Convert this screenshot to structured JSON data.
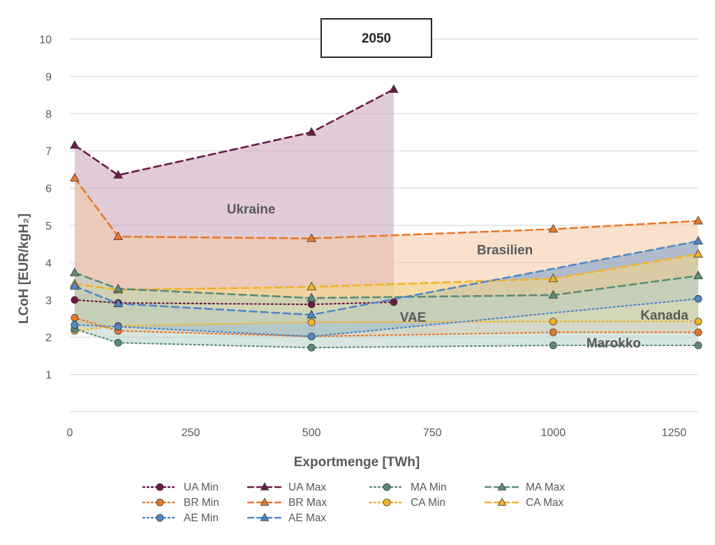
{
  "chart_data": {
    "type": "area",
    "title": "2050",
    "xlabel": "Exportmenge [TWh]",
    "ylabel": "LCoH [EUR/kgH₂]",
    "xlim": [
      0,
      1300
    ],
    "ylim": [
      0,
      10
    ],
    "xticks": [
      0,
      250,
      500,
      750,
      1000,
      1250
    ],
    "yticks": [
      1,
      2,
      3,
      4,
      5,
      6,
      7,
      8,
      9,
      10
    ],
    "grid": "horizontal",
    "legend_position": "bottom",
    "regions": [
      {
        "id": "UA",
        "label": "Ukraine",
        "label_x": 375,
        "label_y": 5.45,
        "color": "#6B1A46",
        "fill": "#C9A0B8"
      },
      {
        "id": "BR",
        "label": "Brasilien",
        "label_x": 900,
        "label_y": 4.35,
        "color": "#E8782A",
        "fill": "#F6C9A4"
      },
      {
        "id": "AE",
        "label": "VAE",
        "label_x": 710,
        "label_y": 2.55,
        "color": "#4F87C7",
        "fill": "#7FA3CC"
      },
      {
        "id": "CA",
        "label": "Kanada",
        "label_x": 1230,
        "label_y": 2.6,
        "color": "#F2B22A",
        "fill": "#F5D78A"
      },
      {
        "id": "MA",
        "label": "Marokko",
        "label_x": 1125,
        "label_y": 1.85,
        "color": "#5A8C78",
        "fill": "#B7D2C6"
      }
    ],
    "series": [
      {
        "name": "UA Min",
        "region": "UA",
        "kind": "min",
        "x": [
          10,
          100,
          500,
          670
        ],
        "y": [
          3.0,
          2.92,
          2.88,
          2.94
        ]
      },
      {
        "name": "UA Max",
        "region": "UA",
        "kind": "max",
        "x": [
          10,
          100,
          500,
          670
        ],
        "y": [
          7.15,
          6.35,
          7.5,
          8.65
        ]
      },
      {
        "name": "MA Min",
        "region": "MA",
        "kind": "min",
        "x": [
          10,
          100,
          500,
          1000,
          1300
        ],
        "y": [
          2.22,
          1.85,
          1.72,
          1.78,
          1.78
        ]
      },
      {
        "name": "MA Max",
        "region": "MA",
        "kind": "max",
        "x": [
          10,
          100,
          500,
          1000,
          1300
        ],
        "y": [
          3.73,
          3.3,
          3.05,
          3.13,
          3.65
        ]
      },
      {
        "name": "BR Min",
        "region": "BR",
        "kind": "min",
        "x": [
          10,
          100,
          500,
          1000,
          1300
        ],
        "y": [
          2.52,
          2.17,
          2.02,
          2.13,
          2.13
        ]
      },
      {
        "name": "BR Max",
        "region": "BR",
        "kind": "max",
        "x": [
          10,
          100,
          500,
          1000,
          1300
        ],
        "y": [
          6.27,
          4.7,
          4.65,
          4.9,
          5.12
        ]
      },
      {
        "name": "CA Min",
        "region": "CA",
        "kind": "min",
        "x": [
          10,
          100,
          500,
          1000,
          1300
        ],
        "y": [
          2.17,
          2.3,
          2.4,
          2.42,
          2.42
        ]
      },
      {
        "name": "CA Max",
        "region": "CA",
        "kind": "max",
        "x": [
          10,
          100,
          500,
          1000,
          1300
        ],
        "y": [
          3.43,
          3.27,
          3.35,
          3.57,
          4.23
        ]
      },
      {
        "name": "AE Min",
        "region": "AE",
        "kind": "min",
        "x": [
          10,
          100,
          500,
          1300
        ],
        "y": [
          2.33,
          2.28,
          2.02,
          3.03
        ]
      },
      {
        "name": "AE Max",
        "region": "AE",
        "kind": "max",
        "x": [
          10,
          100,
          500,
          1300
        ],
        "y": [
          3.37,
          2.9,
          2.6,
          4.58
        ]
      }
    ]
  }
}
